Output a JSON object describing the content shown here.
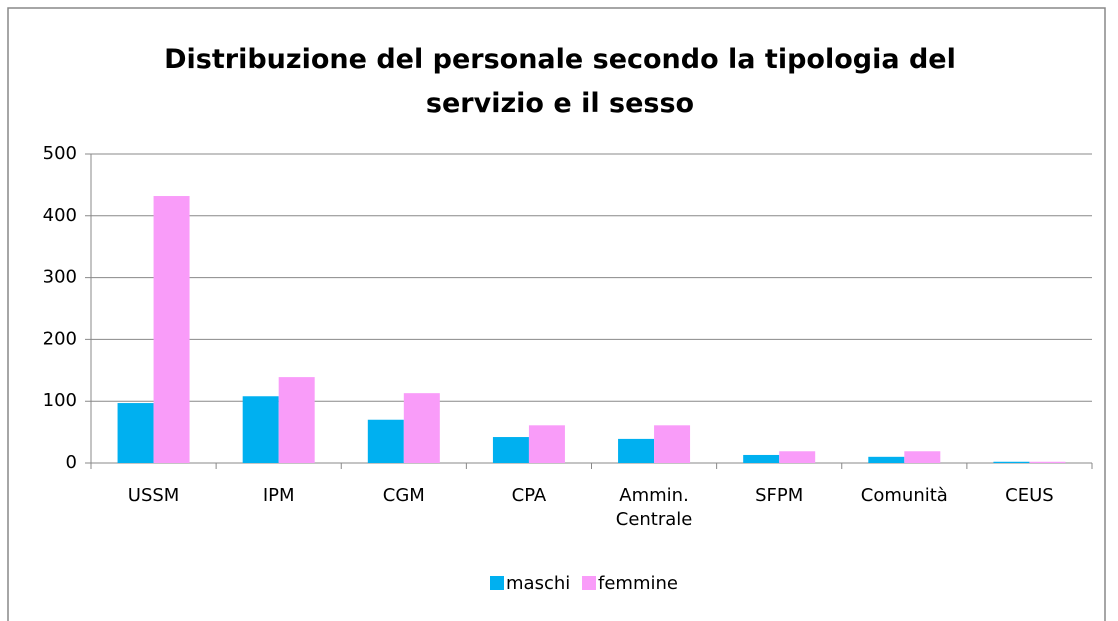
{
  "chart_data": {
    "type": "bar",
    "title": "Distribuzione del personale secondo la tipologia del servizio e il sesso",
    "categories": [
      "USSM",
      "IPM",
      "CGM",
      "CPA",
      "Ammin. Centrale",
      "SFPM",
      "Comunità",
      "CEUS"
    ],
    "series": [
      {
        "name": "maschi",
        "color": "#00b0f0",
        "values": [
          97,
          108,
          70,
          42,
          39,
          13,
          10,
          2
        ]
      },
      {
        "name": "femmine",
        "color": "#f99cf9",
        "values": [
          432,
          139,
          113,
          61,
          61,
          19,
          19,
          2
        ]
      }
    ],
    "ylim": [
      0,
      500
    ],
    "yticks": [
      0,
      100,
      200,
      300,
      400,
      500
    ],
    "grid": true,
    "legend": "bottom"
  }
}
